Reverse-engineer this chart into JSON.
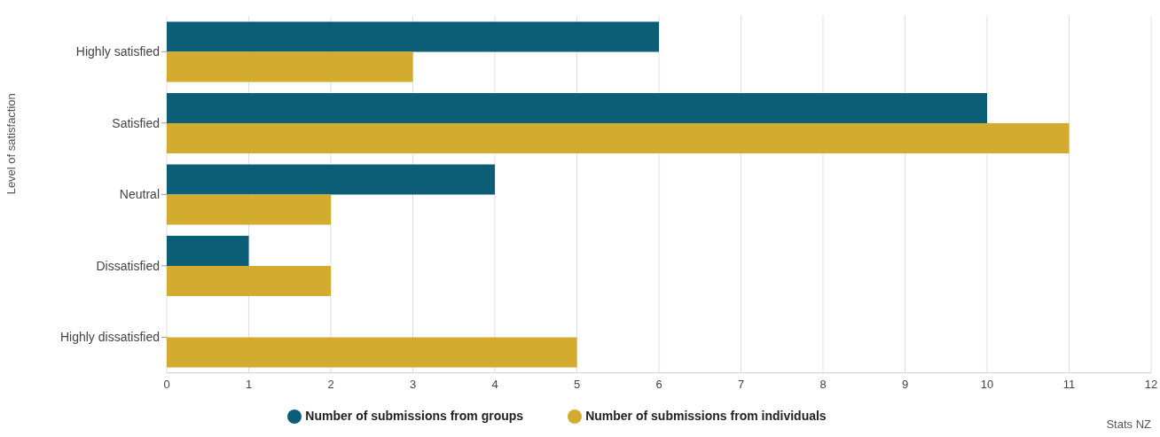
{
  "chart_data": {
    "type": "bar",
    "orientation": "horizontal",
    "ylabel": "Level of satisfaction",
    "categories": [
      "Highly satisfied",
      "Satisfied",
      "Neutral",
      "Dissatisfied",
      "Highly dissatisfied"
    ],
    "series": [
      {
        "name": "Number of submissions from groups",
        "color": "#0b5e75",
        "values": [
          6,
          10,
          4,
          1,
          0
        ]
      },
      {
        "name": "Number of submissions from individuals",
        "color": "#d2ab2f",
        "values": [
          3,
          11,
          2,
          2,
          5
        ]
      }
    ],
    "xlim": [
      0,
      12
    ],
    "xticks": [
      0,
      1,
      2,
      3,
      4,
      5,
      6,
      7,
      8,
      9,
      10,
      11,
      12
    ],
    "grid": "x",
    "legend": "bottom",
    "annotations": [
      "Stats NZ"
    ]
  }
}
